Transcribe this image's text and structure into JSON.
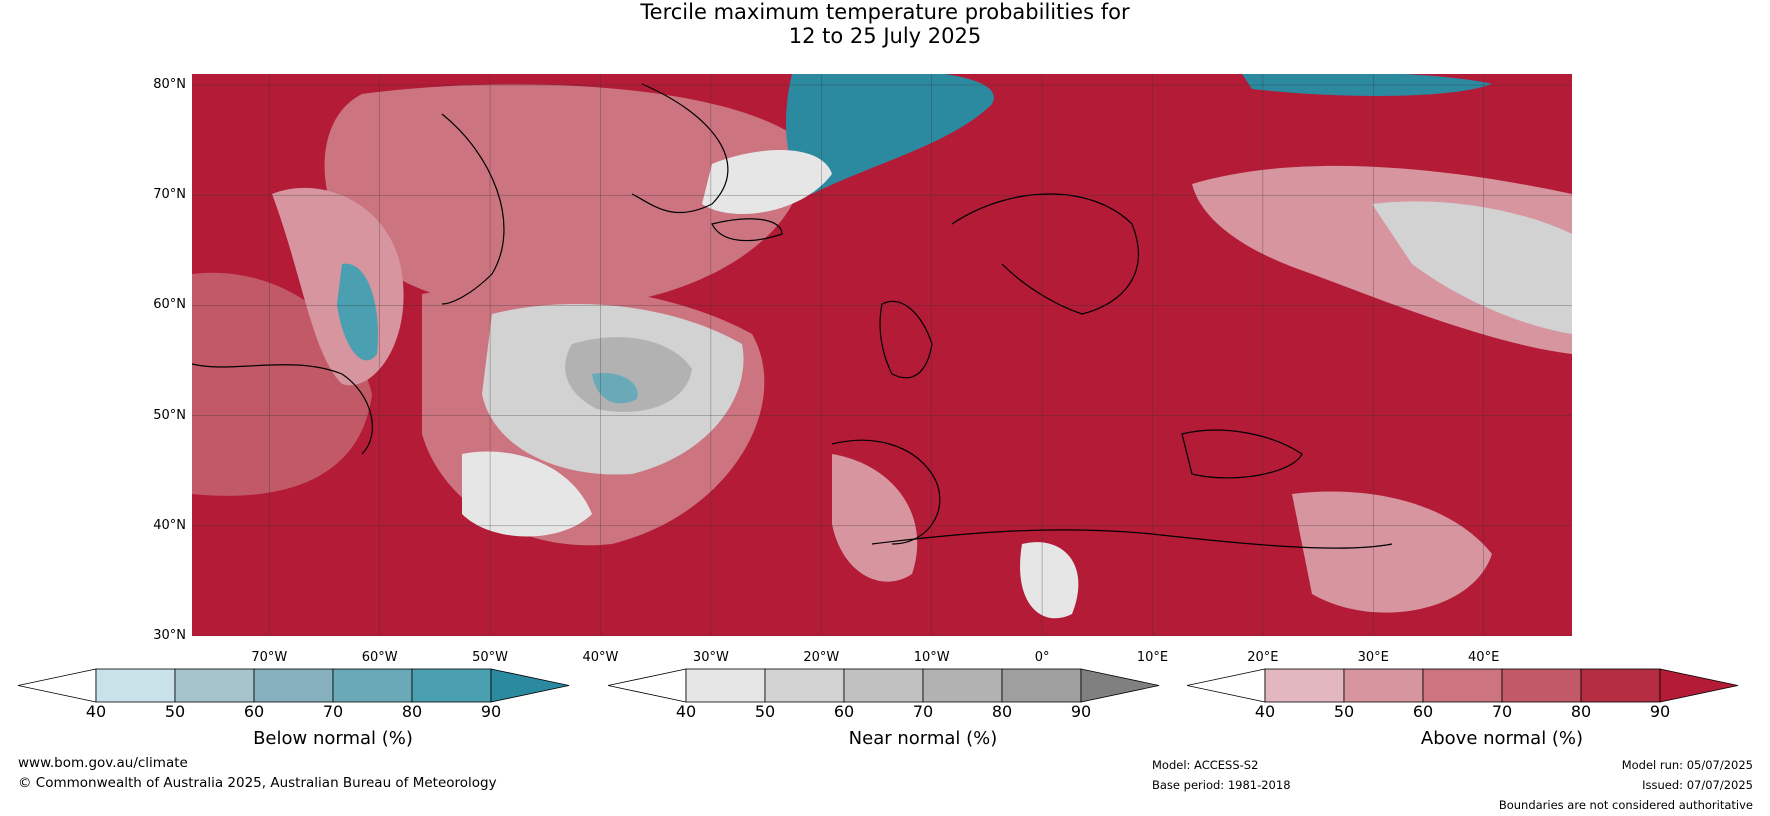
{
  "title": {
    "line1": "Tercile maximum temperature probabilities for",
    "line2": "12 to 25 July 2025"
  },
  "map": {
    "latitudes": [
      {
        "label": "80°N",
        "value": 80
      },
      {
        "label": "70°N",
        "value": 70
      },
      {
        "label": "60°N",
        "value": 60
      },
      {
        "label": "50°N",
        "value": 50
      },
      {
        "label": "40°N",
        "value": 40
      },
      {
        "label": "30°N",
        "value": 30
      }
    ],
    "longitudes": [
      {
        "label": "70°W",
        "value": -70
      },
      {
        "label": "60°W",
        "value": -60
      },
      {
        "label": "50°W",
        "value": -50
      },
      {
        "label": "40°W",
        "value": -40
      },
      {
        "label": "30°W",
        "value": -30
      },
      {
        "label": "20°W",
        "value": -20
      },
      {
        "label": "10°W",
        "value": -10
      },
      {
        "label": "0°",
        "value": 0
      },
      {
        "label": "10°E",
        "value": 10
      },
      {
        "label": "20°E",
        "value": 20
      },
      {
        "label": "30°E",
        "value": 30
      },
      {
        "label": "40°E",
        "value": 40
      }
    ],
    "lon_range": [
      -77,
      48
    ],
    "lat_range": [
      30,
      81
    ]
  },
  "colorbars": [
    {
      "title": "Below normal (%)",
      "ticks": [
        "40",
        "50",
        "60",
        "70",
        "80",
        "90"
      ],
      "colors": [
        "#c9e1e8",
        "#a6c4cc",
        "#87b0bf",
        "#6aaab8",
        "#4a9fb1",
        "#2c8aa0"
      ],
      "low": "#ffffff"
    },
    {
      "title": "Near normal (%)",
      "ticks": [
        "40",
        "50",
        "60",
        "70",
        "80",
        "90"
      ],
      "colors": [
        "#e6e6e6",
        "#d2d2d2",
        "#c1c1c1",
        "#b2b2b2",
        "#9f9f9f",
        "#808080"
      ],
      "low": "#ffffff"
    },
    {
      "title": "Above normal (%)",
      "ticks": [
        "40",
        "50",
        "60",
        "70",
        "80",
        "90"
      ],
      "colors": [
        "#e3b7bf",
        "#d6959f",
        "#cc7581",
        "#c25966",
        "#b52d42",
        "#b31b37"
      ],
      "low": "#ffffff"
    }
  ],
  "footer": {
    "website": "www.bom.gov.au/climate",
    "copyright": "© Commonwealth of Australia 2025, Australian Bureau of Meteorology",
    "model": "Model: ACCESS-S2",
    "base_period": "Base period: 1981-2018",
    "model_run": "Model run: 05/07/2025",
    "issued": "Issued: 07/07/2025",
    "disclaimer": "Boundaries are not considered authoritative"
  }
}
